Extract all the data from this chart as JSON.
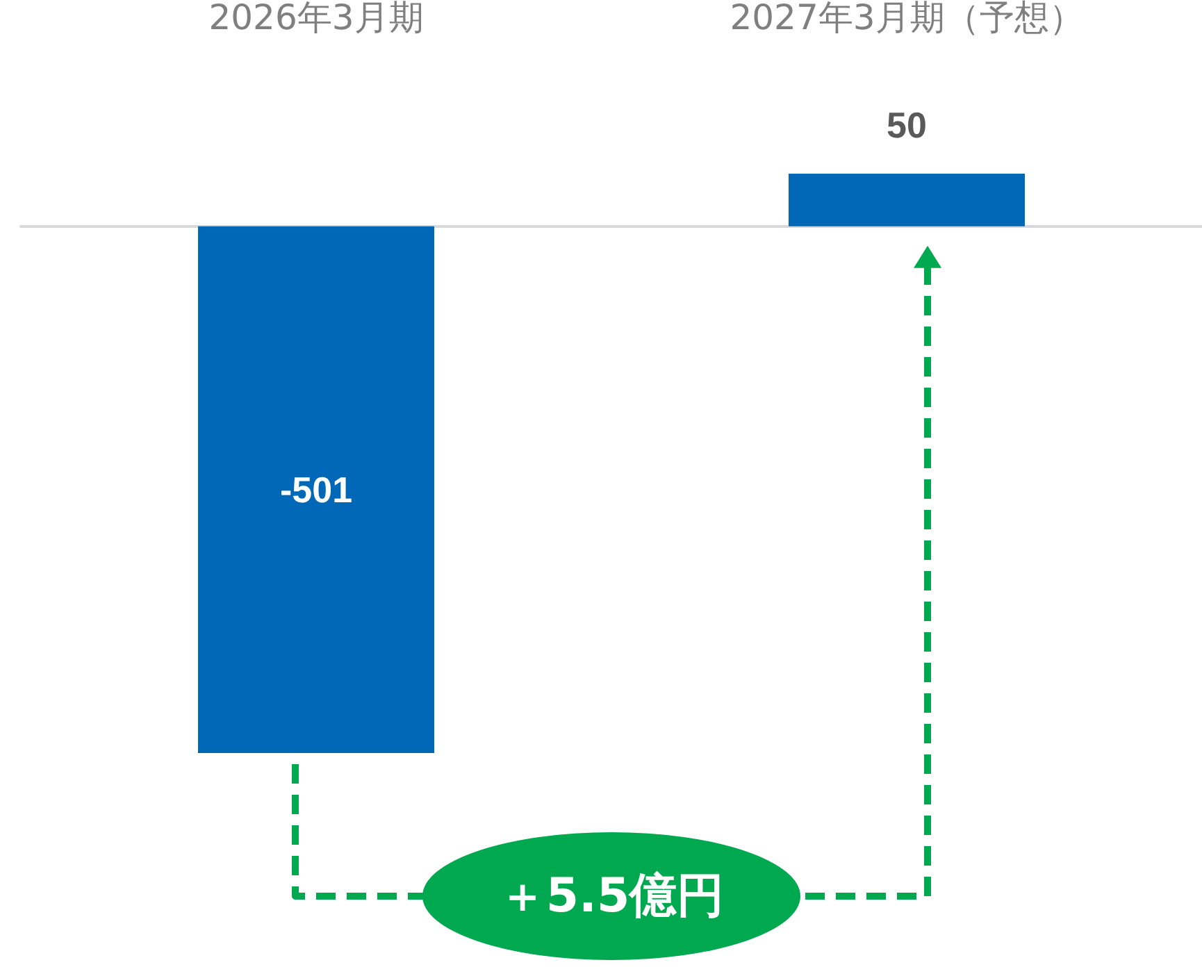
{
  "chart_data": {
    "type": "bar",
    "categories": [
      "2026年3月期",
      "2027年3月期（予想）"
    ],
    "values": [
      -501,
      50
    ],
    "color": "#0068b7",
    "data_labels": true,
    "annotations": [
      "＋5.5億円"
    ]
  }
}
